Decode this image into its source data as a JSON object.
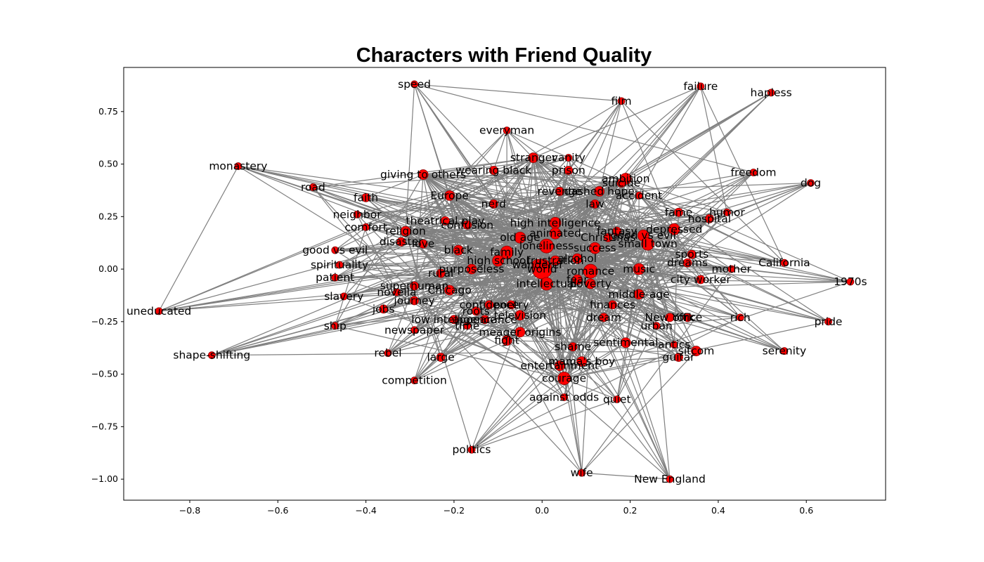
{
  "chart_data": {
    "type": "scatter",
    "title": "Characters with Friend Quality",
    "xlabel": "",
    "ylabel": "",
    "xlim": [
      -0.95,
      0.78
    ],
    "ylim": [
      -1.1,
      0.96
    ],
    "xticks": [
      -0.8,
      -0.6,
      -0.4,
      -0.2,
      0.0,
      0.2,
      0.4,
      0.6
    ],
    "xtick_labels": [
      "−0.8",
      "−0.6",
      "−0.4",
      "−0.2",
      "0.0",
      "0.2",
      "0.4",
      "0.6"
    ],
    "yticks": [
      0.75,
      0.5,
      0.25,
      0.0,
      -0.25,
      -0.5,
      -0.75,
      -1.0
    ],
    "ytick_labels": [
      "0.75",
      "0.50",
      "0.25",
      "0.00",
      "−0.25",
      "−0.50",
      "−0.75",
      "−1.00"
    ],
    "node_color": "#ff0000",
    "edge_color": "#808080",
    "grid": false,
    "nodes": [
      {
        "label": "speed",
        "x": -0.29,
        "y": 0.88,
        "size": 5
      },
      {
        "label": "failure",
        "x": 0.36,
        "y": 0.87,
        "size": 5
      },
      {
        "label": "hapless",
        "x": 0.52,
        "y": 0.84,
        "size": 5
      },
      {
        "label": "film",
        "x": 0.18,
        "y": 0.8,
        "size": 5
      },
      {
        "label": "everyman",
        "x": -0.08,
        "y": 0.66,
        "size": 5
      },
      {
        "label": "stranger",
        "x": -0.02,
        "y": 0.53,
        "size": 7
      },
      {
        "label": "vanity",
        "x": 0.06,
        "y": 0.53,
        "size": 5
      },
      {
        "label": "monastery",
        "x": -0.69,
        "y": 0.49,
        "size": 5
      },
      {
        "label": "prison",
        "x": 0.06,
        "y": 0.47,
        "size": 6
      },
      {
        "label": "wearing black",
        "x": -0.11,
        "y": 0.47,
        "size": 6
      },
      {
        "label": "giving to others",
        "x": -0.27,
        "y": 0.45,
        "size": 7
      },
      {
        "label": "freedom",
        "x": 0.48,
        "y": 0.46,
        "size": 5
      },
      {
        "label": "ambition",
        "x": 0.19,
        "y": 0.43,
        "size": 8
      },
      {
        "label": "suicide",
        "x": 0.18,
        "y": 0.41,
        "size": 6
      },
      {
        "label": "dog",
        "x": 0.61,
        "y": 0.41,
        "size": 5
      },
      {
        "label": "road",
        "x": -0.52,
        "y": 0.39,
        "size": 5
      },
      {
        "label": "revenge",
        "x": 0.04,
        "y": 0.37,
        "size": 6
      },
      {
        "label": "dashed hope",
        "x": 0.13,
        "y": 0.37,
        "size": 7
      },
      {
        "label": "accident",
        "x": 0.22,
        "y": 0.35,
        "size": 5
      },
      {
        "label": "Europe",
        "x": -0.21,
        "y": 0.35,
        "size": 7
      },
      {
        "label": "faith",
        "x": -0.4,
        "y": 0.34,
        "size": 6
      },
      {
        "label": "nerd",
        "x": -0.11,
        "y": 0.31,
        "size": 6
      },
      {
        "label": "law",
        "x": 0.12,
        "y": 0.31,
        "size": 6
      },
      {
        "label": "fame",
        "x": 0.31,
        "y": 0.27,
        "size": 6
      },
      {
        "label": "humor",
        "x": 0.42,
        "y": 0.27,
        "size": 5
      },
      {
        "label": "neighbor",
        "x": -0.42,
        "y": 0.26,
        "size": 5
      },
      {
        "label": "hospital",
        "x": 0.38,
        "y": 0.24,
        "size": 6
      },
      {
        "label": "theatrical play",
        "x": -0.22,
        "y": 0.23,
        "size": 6
      },
      {
        "label": "confusion",
        "x": -0.17,
        "y": 0.21,
        "size": 6
      },
      {
        "label": "comfort",
        "x": -0.4,
        "y": 0.2,
        "size": 5
      },
      {
        "label": "high intelligence",
        "x": 0.03,
        "y": 0.22,
        "size": 8
      },
      {
        "label": "depressed",
        "x": 0.3,
        "y": 0.19,
        "size": 8
      },
      {
        "label": "fantasy",
        "x": 0.17,
        "y": 0.18,
        "size": 6
      },
      {
        "label": "religion",
        "x": -0.31,
        "y": 0.18,
        "size": 7
      },
      {
        "label": "animated",
        "x": 0.03,
        "y": 0.17,
        "size": 8
      },
      {
        "label": "Christmas",
        "x": 0.15,
        "y": 0.15,
        "size": 6
      },
      {
        "label": "good vs evil",
        "x": 0.23,
        "y": 0.16,
        "size": 8
      },
      {
        "label": "old age",
        "x": -0.05,
        "y": 0.15,
        "size": 8
      },
      {
        "label": "disaster",
        "x": -0.32,
        "y": 0.13,
        "size": 6
      },
      {
        "label": "love",
        "x": -0.27,
        "y": 0.12,
        "size": 6
      },
      {
        "label": "small town",
        "x": 0.24,
        "y": 0.12,
        "size": 9
      },
      {
        "label": "loneliness",
        "x": 0.01,
        "y": 0.11,
        "size": 10
      },
      {
        "label": "success",
        "x": 0.12,
        "y": 0.1,
        "size": 8
      },
      {
        "label": "black",
        "x": -0.19,
        "y": 0.09,
        "size": 7
      },
      {
        "label": "family",
        "x": -0.08,
        "y": 0.08,
        "size": 9
      },
      {
        "label": "sports",
        "x": 0.34,
        "y": 0.07,
        "size": 6
      },
      {
        "label": "alcohol",
        "x": 0.08,
        "y": 0.05,
        "size": 7
      },
      {
        "label": "frustration",
        "x": 0.03,
        "y": 0.04,
        "size": 7
      },
      {
        "label": "high school",
        "x": -0.1,
        "y": 0.04,
        "size": 8
      },
      {
        "label": "dreams",
        "x": 0.33,
        "y": 0.03,
        "size": 6
      },
      {
        "label": "California",
        "x": 0.55,
        "y": 0.03,
        "size": 5
      },
      {
        "label": "wanderer",
        "x": -0.01,
        "y": 0.02,
        "size": 8
      },
      {
        "label": "music",
        "x": 0.22,
        "y": 0.0,
        "size": 8
      },
      {
        "label": "purposeless",
        "x": -0.16,
        "y": 0.0,
        "size": 7
      },
      {
        "label": "world",
        "x": 0.0,
        "y": 0.0,
        "size": 14
      },
      {
        "label": "mother",
        "x": 0.43,
        "y": 0.0,
        "size": 5
      },
      {
        "label": "rural",
        "x": -0.23,
        "y": -0.02,
        "size": 6
      },
      {
        "label": "romance",
        "x": 0.11,
        "y": -0.01,
        "size": 10
      },
      {
        "label": "good vs evil",
        "x": -0.47,
        "y": 0.09,
        "size": 5
      },
      {
        "label": "spirituality",
        "x": -0.46,
        "y": 0.02,
        "size": 5
      },
      {
        "label": "patient",
        "x": -0.47,
        "y": -0.04,
        "size": 5
      },
      {
        "label": "fear",
        "x": 0.08,
        "y": -0.05,
        "size": 7
      },
      {
        "label": "city worker",
        "x": 0.36,
        "y": -0.05,
        "size": 6
      },
      {
        "label": "1970s",
        "x": 0.7,
        "y": -0.06,
        "size": 5
      },
      {
        "label": "intellectual",
        "x": 0.01,
        "y": -0.07,
        "size": 9
      },
      {
        "label": "poverty",
        "x": 0.11,
        "y": -0.07,
        "size": 7
      },
      {
        "label": "superhuman",
        "x": -0.29,
        "y": -0.08,
        "size": 6
      },
      {
        "label": "Chicago",
        "x": -0.21,
        "y": -0.1,
        "size": 7
      },
      {
        "label": "novella",
        "x": -0.33,
        "y": -0.11,
        "size": 5
      },
      {
        "label": "middle-age",
        "x": 0.22,
        "y": -0.12,
        "size": 7
      },
      {
        "label": "slavery",
        "x": -0.45,
        "y": -0.13,
        "size": 5
      },
      {
        "label": "journey",
        "x": -0.29,
        "y": -0.15,
        "size": 6
      },
      {
        "label": "confidence",
        "x": -0.12,
        "y": -0.17,
        "size": 6
      },
      {
        "label": "poetry",
        "x": -0.07,
        "y": -0.17,
        "size": 6
      },
      {
        "label": "finances",
        "x": 0.16,
        "y": -0.17,
        "size": 6
      },
      {
        "label": "jobs",
        "x": -0.36,
        "y": -0.19,
        "size": 6
      },
      {
        "label": "uneducated",
        "x": -0.87,
        "y": -0.2,
        "size": 5
      },
      {
        "label": "roots",
        "x": -0.15,
        "y": -0.2,
        "size": 6
      },
      {
        "label": "television",
        "x": -0.05,
        "y": -0.22,
        "size": 7
      },
      {
        "label": "dream",
        "x": 0.14,
        "y": -0.23,
        "size": 6
      },
      {
        "label": "New York",
        "x": 0.29,
        "y": -0.23,
        "size": 6
      },
      {
        "label": "office",
        "x": 0.33,
        "y": -0.23,
        "size": 6
      },
      {
        "label": "rich",
        "x": 0.45,
        "y": -0.23,
        "size": 5
      },
      {
        "label": "low intelligence",
        "x": -0.2,
        "y": -0.24,
        "size": 6
      },
      {
        "label": "appearance",
        "x": -0.13,
        "y": -0.24,
        "size": 6
      },
      {
        "label": "pride",
        "x": 0.65,
        "y": -0.25,
        "size": 5
      },
      {
        "label": "ship",
        "x": -0.47,
        "y": -0.27,
        "size": 5
      },
      {
        "label": "urban",
        "x": 0.26,
        "y": -0.27,
        "size": 5
      },
      {
        "label": "time",
        "x": -0.17,
        "y": -0.27,
        "size": 5
      },
      {
        "label": "newspaper",
        "x": -0.29,
        "y": -0.29,
        "size": 5
      },
      {
        "label": "meager origins",
        "x": -0.05,
        "y": -0.3,
        "size": 7
      },
      {
        "label": "fight",
        "x": -0.08,
        "y": -0.34,
        "size": 7
      },
      {
        "label": "sentimental",
        "x": 0.19,
        "y": -0.35,
        "size": 7
      },
      {
        "label": "shame",
        "x": 0.07,
        "y": -0.37,
        "size": 6
      },
      {
        "label": "antics",
        "x": 0.3,
        "y": -0.36,
        "size": 5
      },
      {
        "label": "sitcom",
        "x": 0.35,
        "y": -0.39,
        "size": 7
      },
      {
        "label": "serenity",
        "x": 0.55,
        "y": -0.39,
        "size": 5
      },
      {
        "label": "rebel",
        "x": -0.35,
        "y": -0.4,
        "size": 5
      },
      {
        "label": "shape-shifting",
        "x": -0.75,
        "y": -0.41,
        "size": 5
      },
      {
        "label": "large",
        "x": -0.23,
        "y": -0.42,
        "size": 6
      },
      {
        "label": "guitar",
        "x": 0.31,
        "y": -0.42,
        "size": 6
      },
      {
        "label": "mama's boy",
        "x": 0.09,
        "y": -0.44,
        "size": 7
      },
      {
        "label": "entertainment",
        "x": 0.04,
        "y": -0.46,
        "size": 7
      },
      {
        "label": "courage",
        "x": 0.05,
        "y": -0.52,
        "size": 9
      },
      {
        "label": "competition",
        "x": -0.29,
        "y": -0.53,
        "size": 5
      },
      {
        "label": "against odds",
        "x": 0.05,
        "y": -0.61,
        "size": 5
      },
      {
        "label": "quiet",
        "x": 0.17,
        "y": -0.62,
        "size": 5
      },
      {
        "label": "politics",
        "x": -0.16,
        "y": -0.86,
        "size": 5
      },
      {
        "label": "wife",
        "x": 0.09,
        "y": -0.97,
        "size": 5
      },
      {
        "label": "New England",
        "x": 0.29,
        "y": -1.0,
        "size": 5
      }
    ]
  }
}
